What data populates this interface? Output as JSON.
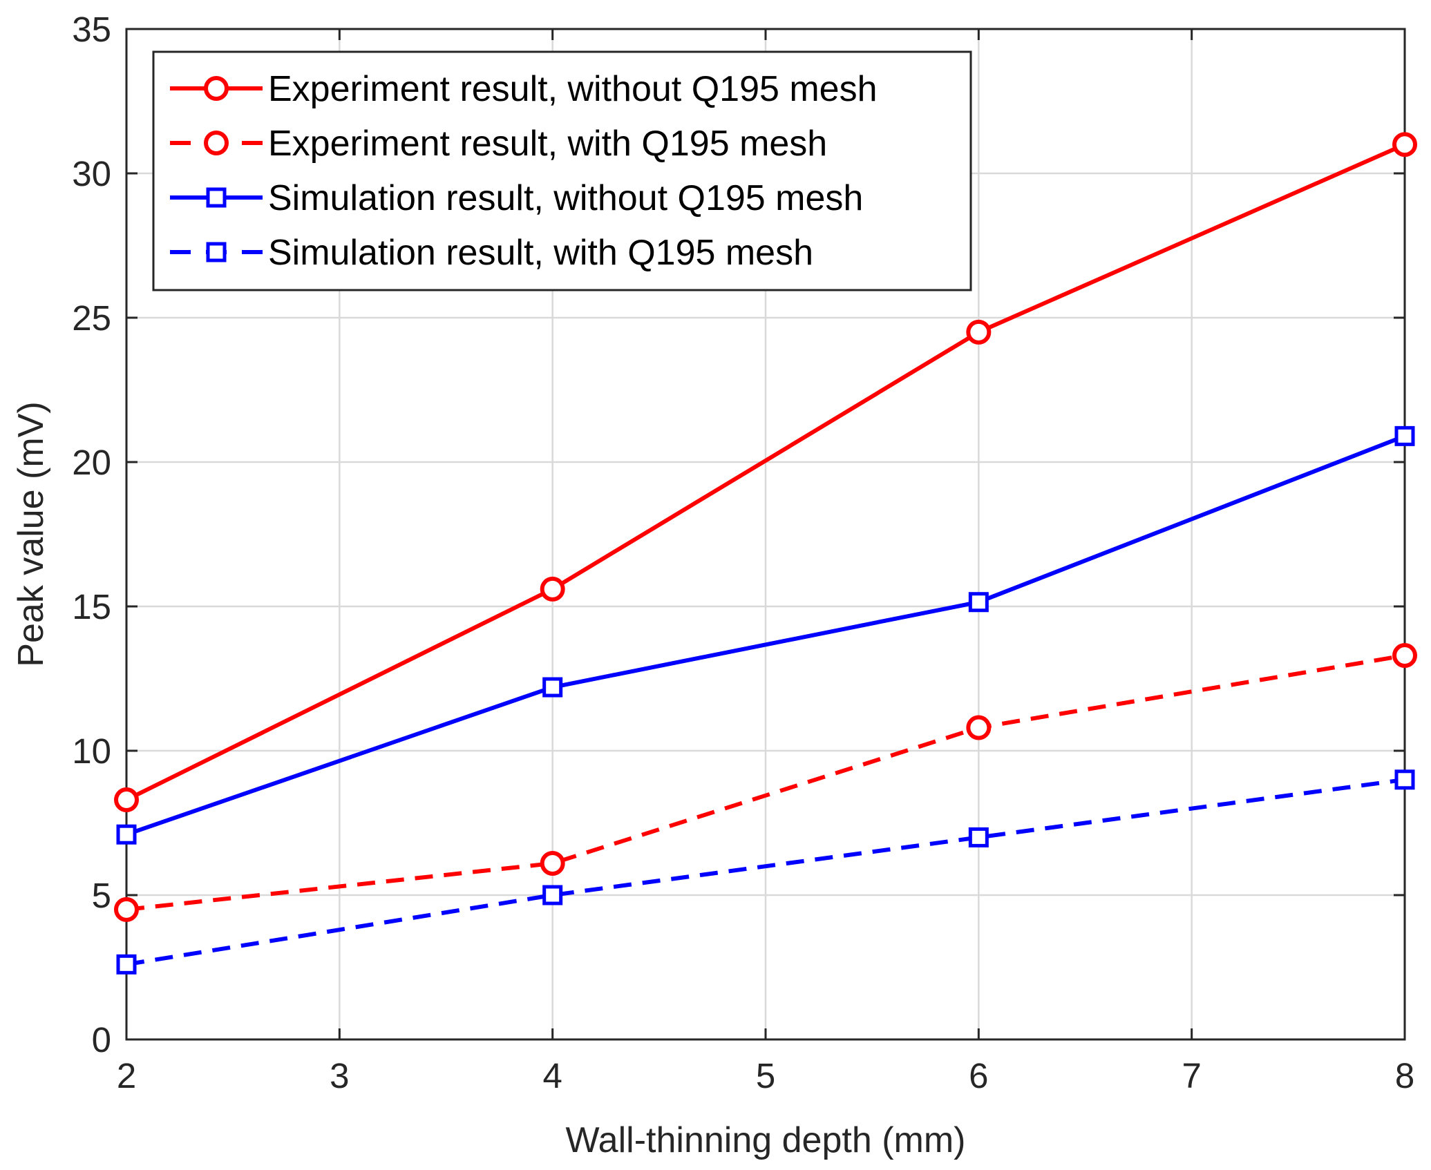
{
  "chart_data": {
    "type": "line",
    "title": "",
    "xlabel": "Wall-thinning depth (mm)",
    "ylabel": "Peak value (mV)",
    "xlim": [
      2,
      8
    ],
    "ylim": [
      0,
      35
    ],
    "xticks": [
      2,
      3,
      4,
      5,
      6,
      7,
      8
    ],
    "yticks": [
      0,
      5,
      10,
      15,
      20,
      25,
      30,
      35
    ],
    "x": [
      2,
      4,
      6,
      8
    ],
    "grid": true,
    "legend_position": "top-left",
    "series": [
      {
        "name": "Experiment result, without Q195 mesh",
        "values": [
          8.3,
          15.6,
          24.5,
          31.0
        ],
        "color": "#ff0000",
        "dashed": false,
        "marker": "circle"
      },
      {
        "name": "Experiment result, with Q195 mesh",
        "values": [
          4.5,
          6.1,
          10.8,
          13.3
        ],
        "color": "#ff0000",
        "dashed": true,
        "marker": "circle"
      },
      {
        "name": "Simulation result, without Q195 mesh",
        "values": [
          7.1,
          12.2,
          15.15,
          20.9
        ],
        "color": "#0000ff",
        "dashed": false,
        "marker": "square"
      },
      {
        "name": "Simulation result, with Q195 mesh",
        "values": [
          2.6,
          5.0,
          7.0,
          9.0
        ],
        "color": "#0000ff",
        "dashed": true,
        "marker": "square"
      }
    ]
  }
}
